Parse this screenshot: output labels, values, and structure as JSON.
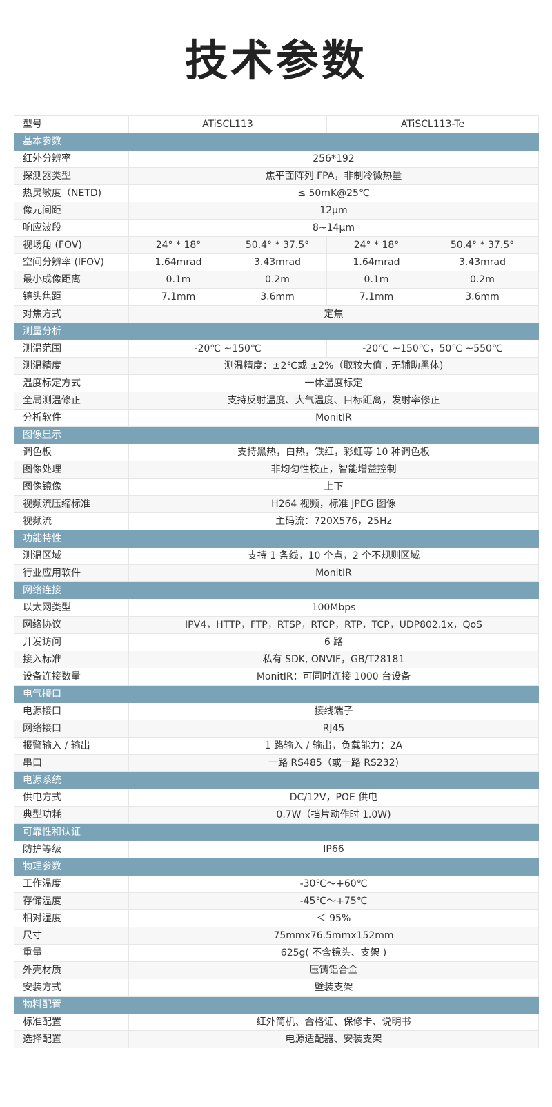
{
  "title": "技术参数",
  "header": {
    "label": "型号",
    "models": [
      "ATiSCL113",
      "ATiSCL113-Te"
    ]
  },
  "sections": [
    {
      "name": "基本参数",
      "rows": [
        {
          "label": "红外分辨率",
          "values": [
            "256*192"
          ]
        },
        {
          "label": "探测器类型",
          "values": [
            "焦平面阵列 FPA，非制冷微热量"
          ]
        },
        {
          "label": "热灵敏度（NETD)",
          "values": [
            "≤ 50mK@25℃"
          ]
        },
        {
          "label": "像元间距",
          "values": [
            "12μm"
          ]
        },
        {
          "label": "响应波段",
          "values": [
            "8~14μm"
          ]
        },
        {
          "label": "视场角 (FOV)",
          "values": [
            "24° * 18°",
            "50.4° * 37.5°",
            "24° * 18°",
            "50.4° * 37.5°"
          ]
        },
        {
          "label": "空间分辨率 (IFOV)",
          "values": [
            "1.64mrad",
            "3.43mrad",
            "1.64mrad",
            "3.43mrad"
          ]
        },
        {
          "label": "最小成像距离",
          "values": [
            "0.1m",
            "0.2m",
            "0.1m",
            "0.2m"
          ]
        },
        {
          "label": "镜头焦距",
          "values": [
            "7.1mm",
            "3.6mm",
            "7.1mm",
            "3.6mm"
          ]
        },
        {
          "label": "对焦方式",
          "values": [
            "定焦"
          ]
        }
      ]
    },
    {
      "name": "测量分析",
      "rows": [
        {
          "label": "测温范围",
          "values": [
            "-20℃ ~150℃",
            "-20℃ ~150℃，50℃ ~550℃"
          ]
        },
        {
          "label": "测温精度",
          "values": [
            "测温精度：±2℃或 ±2%（取较大值 , 无辅助黑体)"
          ]
        },
        {
          "label": "温度标定方式",
          "values": [
            "一体温度标定"
          ]
        },
        {
          "label": "全局测温修正",
          "values": [
            "支持反射温度、大气温度、目标距离，发射率修正"
          ]
        },
        {
          "label": "分析软件",
          "values": [
            "MonitIR"
          ]
        }
      ]
    },
    {
      "name": "图像显示",
      "rows": [
        {
          "label": "调色板",
          "values": [
            "支持黑热，白热，铁红，彩虹等 10 种调色板"
          ]
        },
        {
          "label": "图像处理",
          "values": [
            "非均匀性校正，智能增益控制"
          ]
        },
        {
          "label": "图像镜像",
          "values": [
            "上下"
          ]
        },
        {
          "label": "视频流压缩标准",
          "values": [
            "H264 视频，标准 JPEG 图像"
          ]
        },
        {
          "label": "视频流",
          "values": [
            "主码流：720X576，25Hz"
          ]
        }
      ]
    },
    {
      "name": "功能特性",
      "rows": [
        {
          "label": "测温区域",
          "values": [
            "支持 1 条线，10 个点，2 个不规则区域"
          ]
        },
        {
          "label": "行业应用软件",
          "values": [
            "MonitIR"
          ]
        }
      ]
    },
    {
      "name": "网络连接",
      "rows": [
        {
          "label": "以太网类型",
          "values": [
            "100Mbps"
          ]
        },
        {
          "label": "网络协议",
          "values": [
            "IPV4，HTTP，FTP，RTSP，RTCP，RTP，TCP，UDP802.1x，QoS"
          ]
        },
        {
          "label": "并发访问",
          "values": [
            "6 路"
          ]
        },
        {
          "label": "接入标准",
          "values": [
            "私有 SDK, ONVIF，GB/T28181"
          ]
        },
        {
          "label": "设备连接数量",
          "values": [
            "MonitIR：可同时连接 1000 台设备"
          ]
        }
      ]
    },
    {
      "name": "电气接口",
      "rows": [
        {
          "label": "电源接口",
          "values": [
            "接线端子"
          ]
        },
        {
          "label": "网络接口",
          "values": [
            "RJ45"
          ]
        },
        {
          "label": "报警输入 / 输出",
          "values": [
            "1 路输入 / 输出，负载能力：2A"
          ]
        },
        {
          "label": "串口",
          "values": [
            "一路 RS485（或一路 RS232)"
          ]
        }
      ]
    },
    {
      "name": "电源系统",
      "rows": [
        {
          "label": "供电方式",
          "values": [
            "DC/12V，POE 供电"
          ]
        },
        {
          "label": "典型功耗",
          "values": [
            "0.7W（挡片动作时 1.0W)"
          ]
        }
      ]
    },
    {
      "name": "可靠性和认证",
      "rows": [
        {
          "label": "防护等级",
          "values": [
            "IP66"
          ]
        }
      ]
    },
    {
      "name": "物理参数",
      "rows": [
        {
          "label": "工作温度",
          "values": [
            "-30℃～+60℃"
          ]
        },
        {
          "label": "存储温度",
          "values": [
            "-45℃～+75℃"
          ]
        },
        {
          "label": "相对湿度",
          "values": [
            "＜ 95%"
          ]
        },
        {
          "label": "尺寸",
          "values": [
            "75mmx76.5mmx152mm"
          ]
        },
        {
          "label": "重量",
          "values": [
            "625g( 不含镜头、支架 )"
          ]
        },
        {
          "label": "外壳材质",
          "values": [
            "压铸铝合金"
          ]
        },
        {
          "label": "安装方式",
          "values": [
            "壁装支架"
          ]
        }
      ]
    },
    {
      "name": "物料配置",
      "rows": [
        {
          "label": "标准配置",
          "values": [
            "红外筒机、合格证、保修卡、说明书"
          ]
        },
        {
          "label": "选择配置",
          "values": [
            "电源适配器、安装支架"
          ]
        }
      ]
    }
  ],
  "colors": {
    "section_header": "#7aa3b8",
    "alt_row": "#f7f7f7"
  }
}
